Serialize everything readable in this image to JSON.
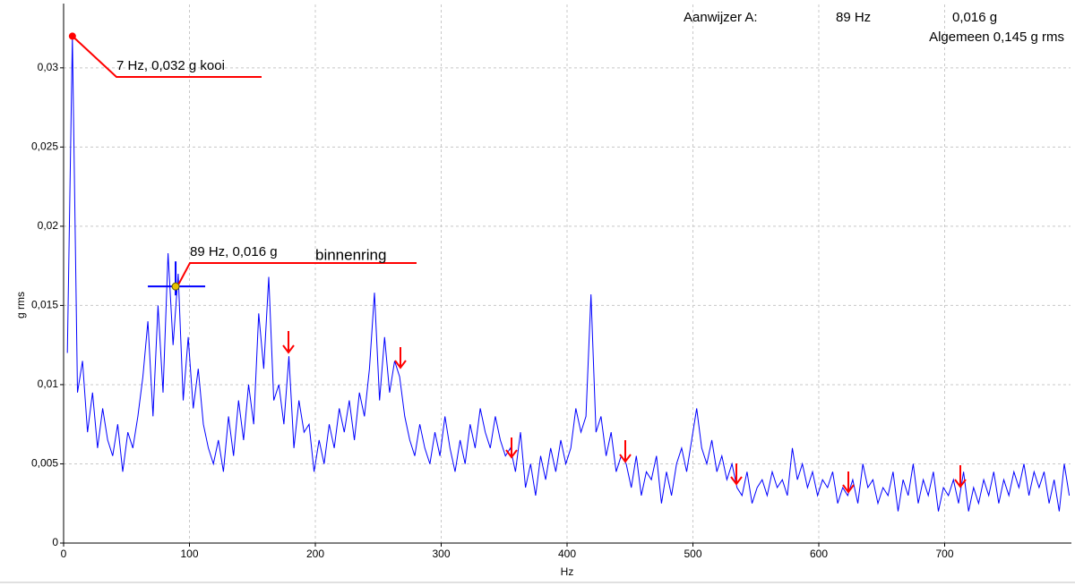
{
  "chart_data": {
    "type": "line",
    "header": [
      "Aanwijzer A:",
      "89 Hz",
      "0,016 g",
      "Algemeen 0,145 g rms"
    ],
    "x_label": "Hz",
    "y_label": "g rms",
    "xlim": [
      0,
      800
    ],
    "ylim": [
      0,
      0.034
    ],
    "xticks": [
      0,
      100,
      200,
      300,
      400,
      500,
      600,
      700
    ],
    "yticks": [
      0,
      {
        "value": 0.005,
        "label": "0,005"
      },
      {
        "value": 0.01,
        "label": "0,01"
      },
      {
        "value": 0.015,
        "label": "0,015"
      },
      {
        "value": 0.02,
        "label": "0,02"
      },
      {
        "value": 0.025,
        "label": "0,025"
      },
      {
        "value": 0.03,
        "label": "0,03"
      }
    ],
    "grid": true,
    "annotations": [
      {
        "text": "7 Hz, 0,032 g kooi",
        "x": 7,
        "y": 0.032,
        "color": "#ff0000"
      },
      {
        "text": "89 Hz, 0,016 g",
        "x": 89,
        "y": 0.0162,
        "color": "#e8c000",
        "note": "binnenring"
      }
    ],
    "series": [
      {
        "color": "#0000ff",
        "x": [
          3,
          7,
          11,
          15,
          19,
          23,
          27,
          31,
          35,
          39,
          43,
          47,
          51,
          55,
          59,
          63,
          67,
          71,
          75,
          79,
          83,
          87,
          91,
          95,
          99,
          103,
          107,
          111,
          115,
          119,
          123,
          127,
          131,
          135,
          139,
          143,
          147,
          151,
          155,
          159,
          163,
          167,
          171,
          175,
          179,
          183,
          187,
          191,
          195,
          199,
          203,
          207,
          211,
          215,
          219,
          223,
          227,
          231,
          235,
          239,
          243,
          247,
          251,
          255,
          259,
          263,
          267,
          271,
          275,
          279,
          283,
          287,
          291,
          295,
          299,
          303,
          307,
          311,
          315,
          319,
          323,
          327,
          331,
          335,
          339,
          343,
          347,
          351,
          355,
          359,
          363,
          367,
          371,
          375,
          379,
          383,
          387,
          391,
          395,
          399,
          403,
          407,
          411,
          415,
          419,
          423,
          427,
          431,
          435,
          439,
          443,
          447,
          451,
          455,
          459,
          463,
          467,
          471,
          475,
          479,
          483,
          487,
          491,
          495,
          499,
          503,
          507,
          511,
          515,
          519,
          523,
          527,
          531,
          535,
          539,
          543,
          547,
          551,
          555,
          559,
          563,
          567,
          571,
          575,
          579,
          583,
          587,
          591,
          595,
          599,
          603,
          607,
          611,
          615,
          619,
          623,
          627,
          631,
          635,
          639,
          643,
          647,
          651,
          655,
          659,
          663,
          667,
          671,
          675,
          679,
          683,
          687,
          691,
          695,
          699,
          703,
          707,
          711,
          715,
          719,
          723,
          727,
          731,
          735,
          739,
          743,
          747,
          751,
          755,
          759,
          763,
          767,
          771,
          775,
          779,
          783,
          787,
          791,
          795,
          799
        ],
        "values": [
          0.012,
          0.032,
          0.0095,
          0.0115,
          0.007,
          0.0095,
          0.006,
          0.0085,
          0.0065,
          0.0055,
          0.0075,
          0.0045,
          0.007,
          0.006,
          0.008,
          0.0105,
          0.014,
          0.008,
          0.015,
          0.0095,
          0.0183,
          0.0125,
          0.017,
          0.009,
          0.013,
          0.0085,
          0.011,
          0.0075,
          0.006,
          0.005,
          0.0065,
          0.0045,
          0.008,
          0.0055,
          0.009,
          0.0065,
          0.01,
          0.0075,
          0.0145,
          0.011,
          0.0168,
          0.009,
          0.01,
          0.0075,
          0.0118,
          0.006,
          0.009,
          0.007,
          0.0075,
          0.0045,
          0.0065,
          0.005,
          0.0075,
          0.006,
          0.0085,
          0.007,
          0.009,
          0.0065,
          0.0095,
          0.008,
          0.011,
          0.0158,
          0.009,
          0.013,
          0.0095,
          0.0115,
          0.0105,
          0.008,
          0.0065,
          0.0055,
          0.0075,
          0.006,
          0.005,
          0.007,
          0.0055,
          0.008,
          0.006,
          0.0045,
          0.0065,
          0.005,
          0.0075,
          0.006,
          0.0085,
          0.007,
          0.006,
          0.008,
          0.0065,
          0.0055,
          0.006,
          0.0045,
          0.007,
          0.0035,
          0.005,
          0.003,
          0.0055,
          0.004,
          0.006,
          0.0045,
          0.0065,
          0.005,
          0.006,
          0.0085,
          0.007,
          0.008,
          0.0157,
          0.007,
          0.008,
          0.0055,
          0.007,
          0.0045,
          0.0055,
          0.005,
          0.0035,
          0.0055,
          0.003,
          0.0045,
          0.004,
          0.0055,
          0.0025,
          0.0045,
          0.003,
          0.005,
          0.006,
          0.0045,
          0.0065,
          0.0085,
          0.006,
          0.005,
          0.0065,
          0.0045,
          0.0055,
          0.004,
          0.005,
          0.0035,
          0.003,
          0.0045,
          0.0025,
          0.0035,
          0.004,
          0.003,
          0.0045,
          0.0035,
          0.004,
          0.003,
          0.006,
          0.004,
          0.005,
          0.0035,
          0.0045,
          0.003,
          0.004,
          0.0035,
          0.0045,
          0.0025,
          0.0035,
          0.003,
          0.004,
          0.0025,
          0.005,
          0.0035,
          0.004,
          0.0025,
          0.0035,
          0.003,
          0.0045,
          0.002,
          0.004,
          0.003,
          0.005,
          0.0025,
          0.004,
          0.003,
          0.0045,
          0.002,
          0.0035,
          0.003,
          0.004,
          0.0025,
          0.0045,
          0.002,
          0.0035,
          0.0025,
          0.004,
          0.003,
          0.0045,
          0.0025,
          0.004,
          0.003,
          0.0045,
          0.0035,
          0.005,
          0.003,
          0.0045,
          0.0035,
          0.0045,
          0.0025,
          0.004,
          0.002,
          0.005,
          0.003
        ]
      }
    ]
  }
}
